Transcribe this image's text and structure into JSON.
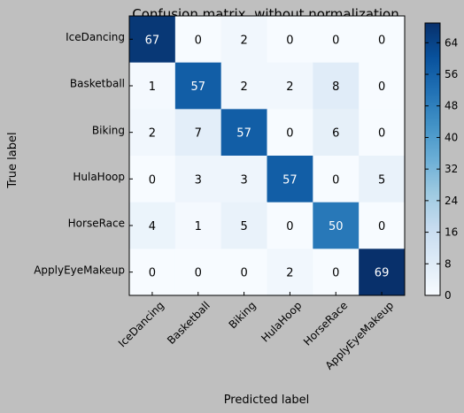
{
  "chart_data": {
    "type": "heatmap",
    "title": "Confusion matrix, without normalization",
    "xlabel": "Predicted label",
    "ylabel": "True label",
    "row_labels": [
      "IceDancing",
      "Basketball",
      "Biking",
      "HulaHoop",
      "HorseRace",
      "ApplyEyeMakeup"
    ],
    "col_labels": [
      "IceDancing",
      "Basketball",
      "Biking",
      "HulaHoop",
      "HorseRace",
      "ApplyEyeMakeup"
    ],
    "matrix": [
      [
        67,
        0,
        2,
        0,
        0,
        0
      ],
      [
        1,
        57,
        2,
        2,
        8,
        0
      ],
      [
        2,
        7,
        57,
        0,
        6,
        0
      ],
      [
        0,
        3,
        3,
        57,
        0,
        5
      ],
      [
        4,
        1,
        5,
        0,
        50,
        0
      ],
      [
        0,
        0,
        0,
        2,
        0,
        69
      ]
    ],
    "colorbar": {
      "range": [
        0,
        69
      ],
      "ticks": [
        0,
        8,
        16,
        24,
        32,
        40,
        48,
        56,
        64
      ]
    },
    "colormap": "Blues",
    "grid": false
  }
}
